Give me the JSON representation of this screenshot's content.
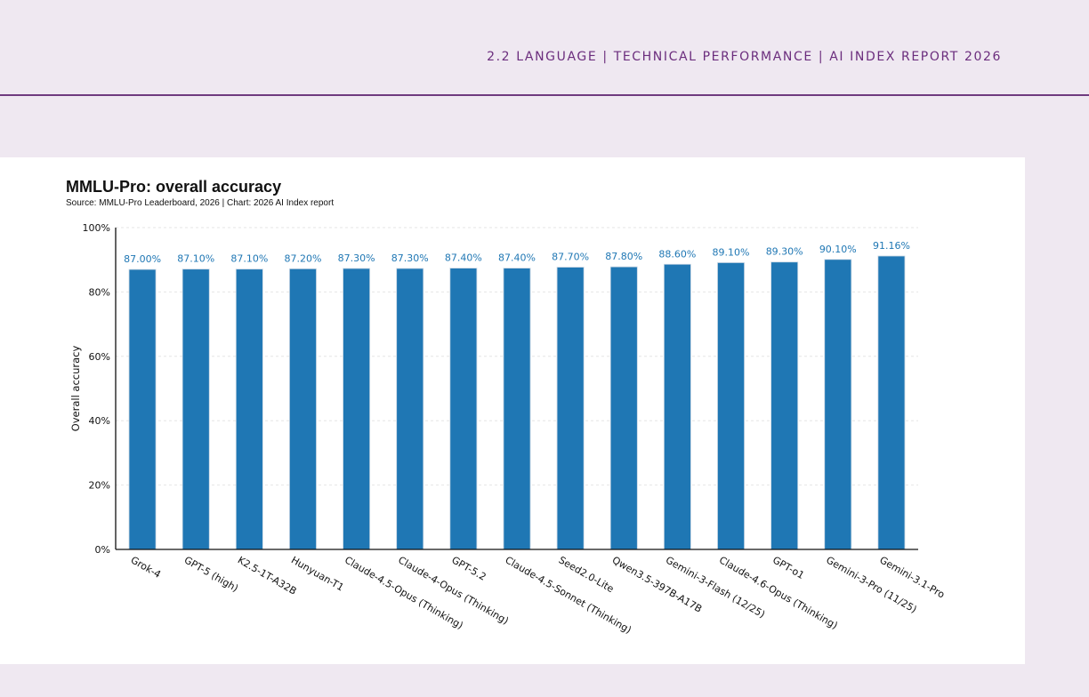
{
  "header": {
    "section": "2.2 LANGUAGE | TECHNICAL PERFORMANCE | AI INDEX REPORT 2026"
  },
  "colors": {
    "background": "#efe8f1",
    "accent": "#6b2d7d",
    "bar": "#1f77b4"
  },
  "chart_data": {
    "type": "bar",
    "title": "MMLU-Pro: overall accuracy",
    "source": "Source: MMLU-Pro Leaderboard, 2026 | Chart: 2026 AI Index report",
    "xlabel": "",
    "ylabel": "Overall accuracy",
    "ylim": [
      0,
      100
    ],
    "yticks": [
      0,
      20,
      40,
      60,
      80,
      100
    ],
    "ytick_labels": [
      "0%",
      "20%",
      "40%",
      "60%",
      "80%",
      "100%"
    ],
    "grid": true,
    "categories": [
      "Grok-4",
      "GPT-5 (high)",
      "K2.5-1T-A32B",
      "Hunyuan-T1",
      "Claude-4.5-Opus (Thinking)",
      "Claude-4-Opus (Thinking)",
      "GPT-5.2",
      "Claude-4.5-Sonnet (Thinking)",
      "Seed2.0-Lite",
      "Qwen3.5-397B-A17B",
      "Gemini-3-Flash (12/25)",
      "Claude-4.6-Opus (Thinking)",
      "GPT-o1",
      "Gemini-3-Pro (11/25)",
      "Gemini-3.1-Pro"
    ],
    "values": [
      87.0,
      87.1,
      87.1,
      87.2,
      87.3,
      87.3,
      87.4,
      87.4,
      87.7,
      87.8,
      88.6,
      89.1,
      89.3,
      90.1,
      91.16
    ],
    "data_labels": [
      "87.00%",
      "87.10%",
      "87.10%",
      "87.20%",
      "87.30%",
      "87.30%",
      "87.40%",
      "87.40%",
      "87.70%",
      "87.80%",
      "88.60%",
      "89.10%",
      "89.30%",
      "90.10%",
      "91.16%"
    ]
  }
}
